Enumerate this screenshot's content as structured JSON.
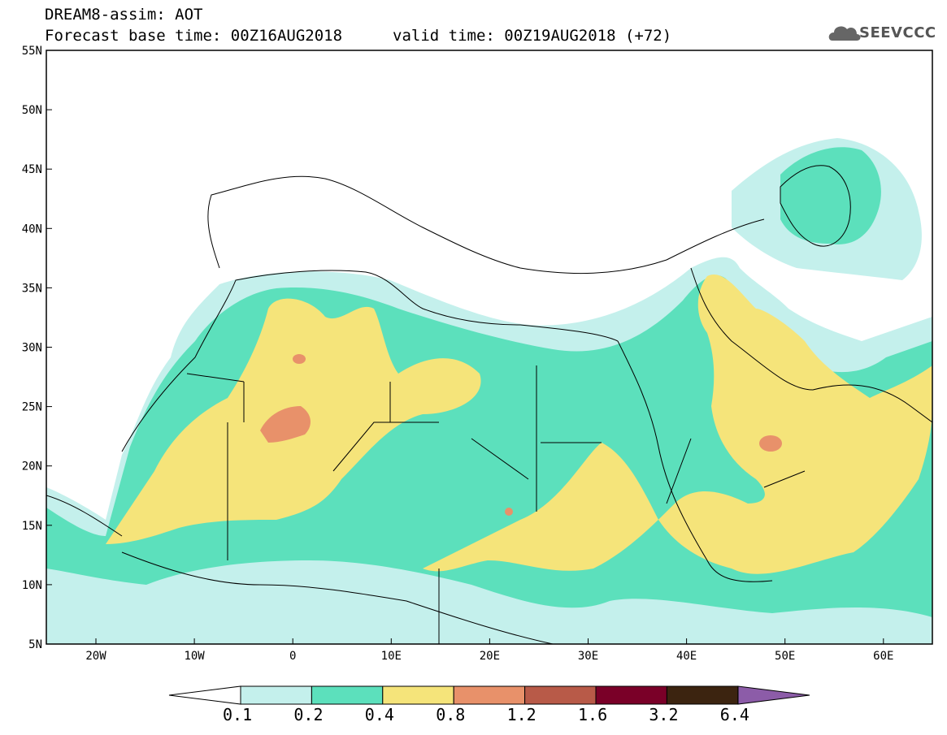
{
  "header": {
    "line1": "DREAM8-assim: AOT",
    "line2": "Forecast base time: 00Z16AUG2018",
    "line3": "valid time: 00Z19AUG2018 (+72)",
    "logo_text": "SEEVCCC"
  },
  "map": {
    "lat_labels": [
      "55N",
      "50N",
      "45N",
      "40N",
      "35N",
      "30N",
      "25N",
      "20N",
      "15N",
      "10N",
      "5N"
    ],
    "lon_labels": [
      "20W",
      "10W",
      "0",
      "10E",
      "20E",
      "30E",
      "40E",
      "50E",
      "60E"
    ],
    "extent": {
      "lon": [
        -25,
        65
      ],
      "lat": [
        5,
        55
      ]
    },
    "variable": "Aerosol Optical Thickness"
  },
  "colorbar": {
    "labels": [
      "0.1",
      "0.2",
      "0.4",
      "0.8",
      "1.2",
      "1.6",
      "3.2",
      "6.4"
    ],
    "colors": [
      "#c4f0ec",
      "#5ce0bc",
      "#f5e47a",
      "#e8916a",
      "#b85a48",
      "#7a0028",
      "#3c2410",
      "#8c5ca8"
    ]
  }
}
